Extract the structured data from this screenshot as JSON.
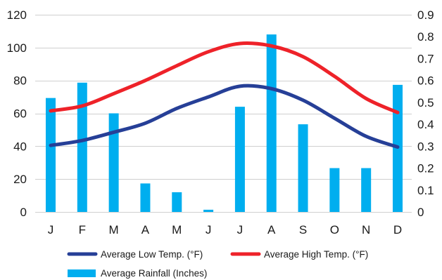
{
  "chart_data": {
    "type": "bar+line",
    "categories": [
      "J",
      "F",
      "M",
      "A",
      "M",
      "J",
      "J",
      "A",
      "S",
      "O",
      "N",
      "D"
    ],
    "left_axis": {
      "ylim": [
        0,
        120
      ],
      "ticks": [
        "0",
        "20",
        "40",
        "60",
        "80",
        "100",
        "120"
      ]
    },
    "right_axis": {
      "ylim": [
        0,
        0.9
      ],
      "ticks": [
        "0",
        "0.1",
        "0.2",
        "0.3",
        "0.4",
        "0.5",
        "0.6",
        "0.7",
        "0.8",
        "0.9"
      ]
    },
    "grid": true,
    "legend_position": "bottom",
    "series": [
      {
        "name": "Average Rainfall (Inches)",
        "type": "bar",
        "axis": "right",
        "color": "#00AEEF",
        "values": [
          0.52,
          0.59,
          0.45,
          0.13,
          0.09,
          0.01,
          0.48,
          0.81,
          0.4,
          0.2,
          0.2,
          0.58
        ]
      },
      {
        "name": "Average Low Temp. (°F)",
        "type": "line",
        "axis": "left",
        "color": "#263F97",
        "values": [
          40.5,
          43.5,
          48.5,
          54,
          63,
          70,
          76.5,
          75,
          68,
          57,
          46,
          39.5
        ]
      },
      {
        "name": "Average High Temp. (°F)",
        "type": "line",
        "axis": "left",
        "color": "#EE2229",
        "values": [
          61.5,
          64.5,
          72,
          80,
          89,
          97.5,
          102.5,
          101,
          94.5,
          82.5,
          69,
          60.5
        ]
      }
    ]
  }
}
